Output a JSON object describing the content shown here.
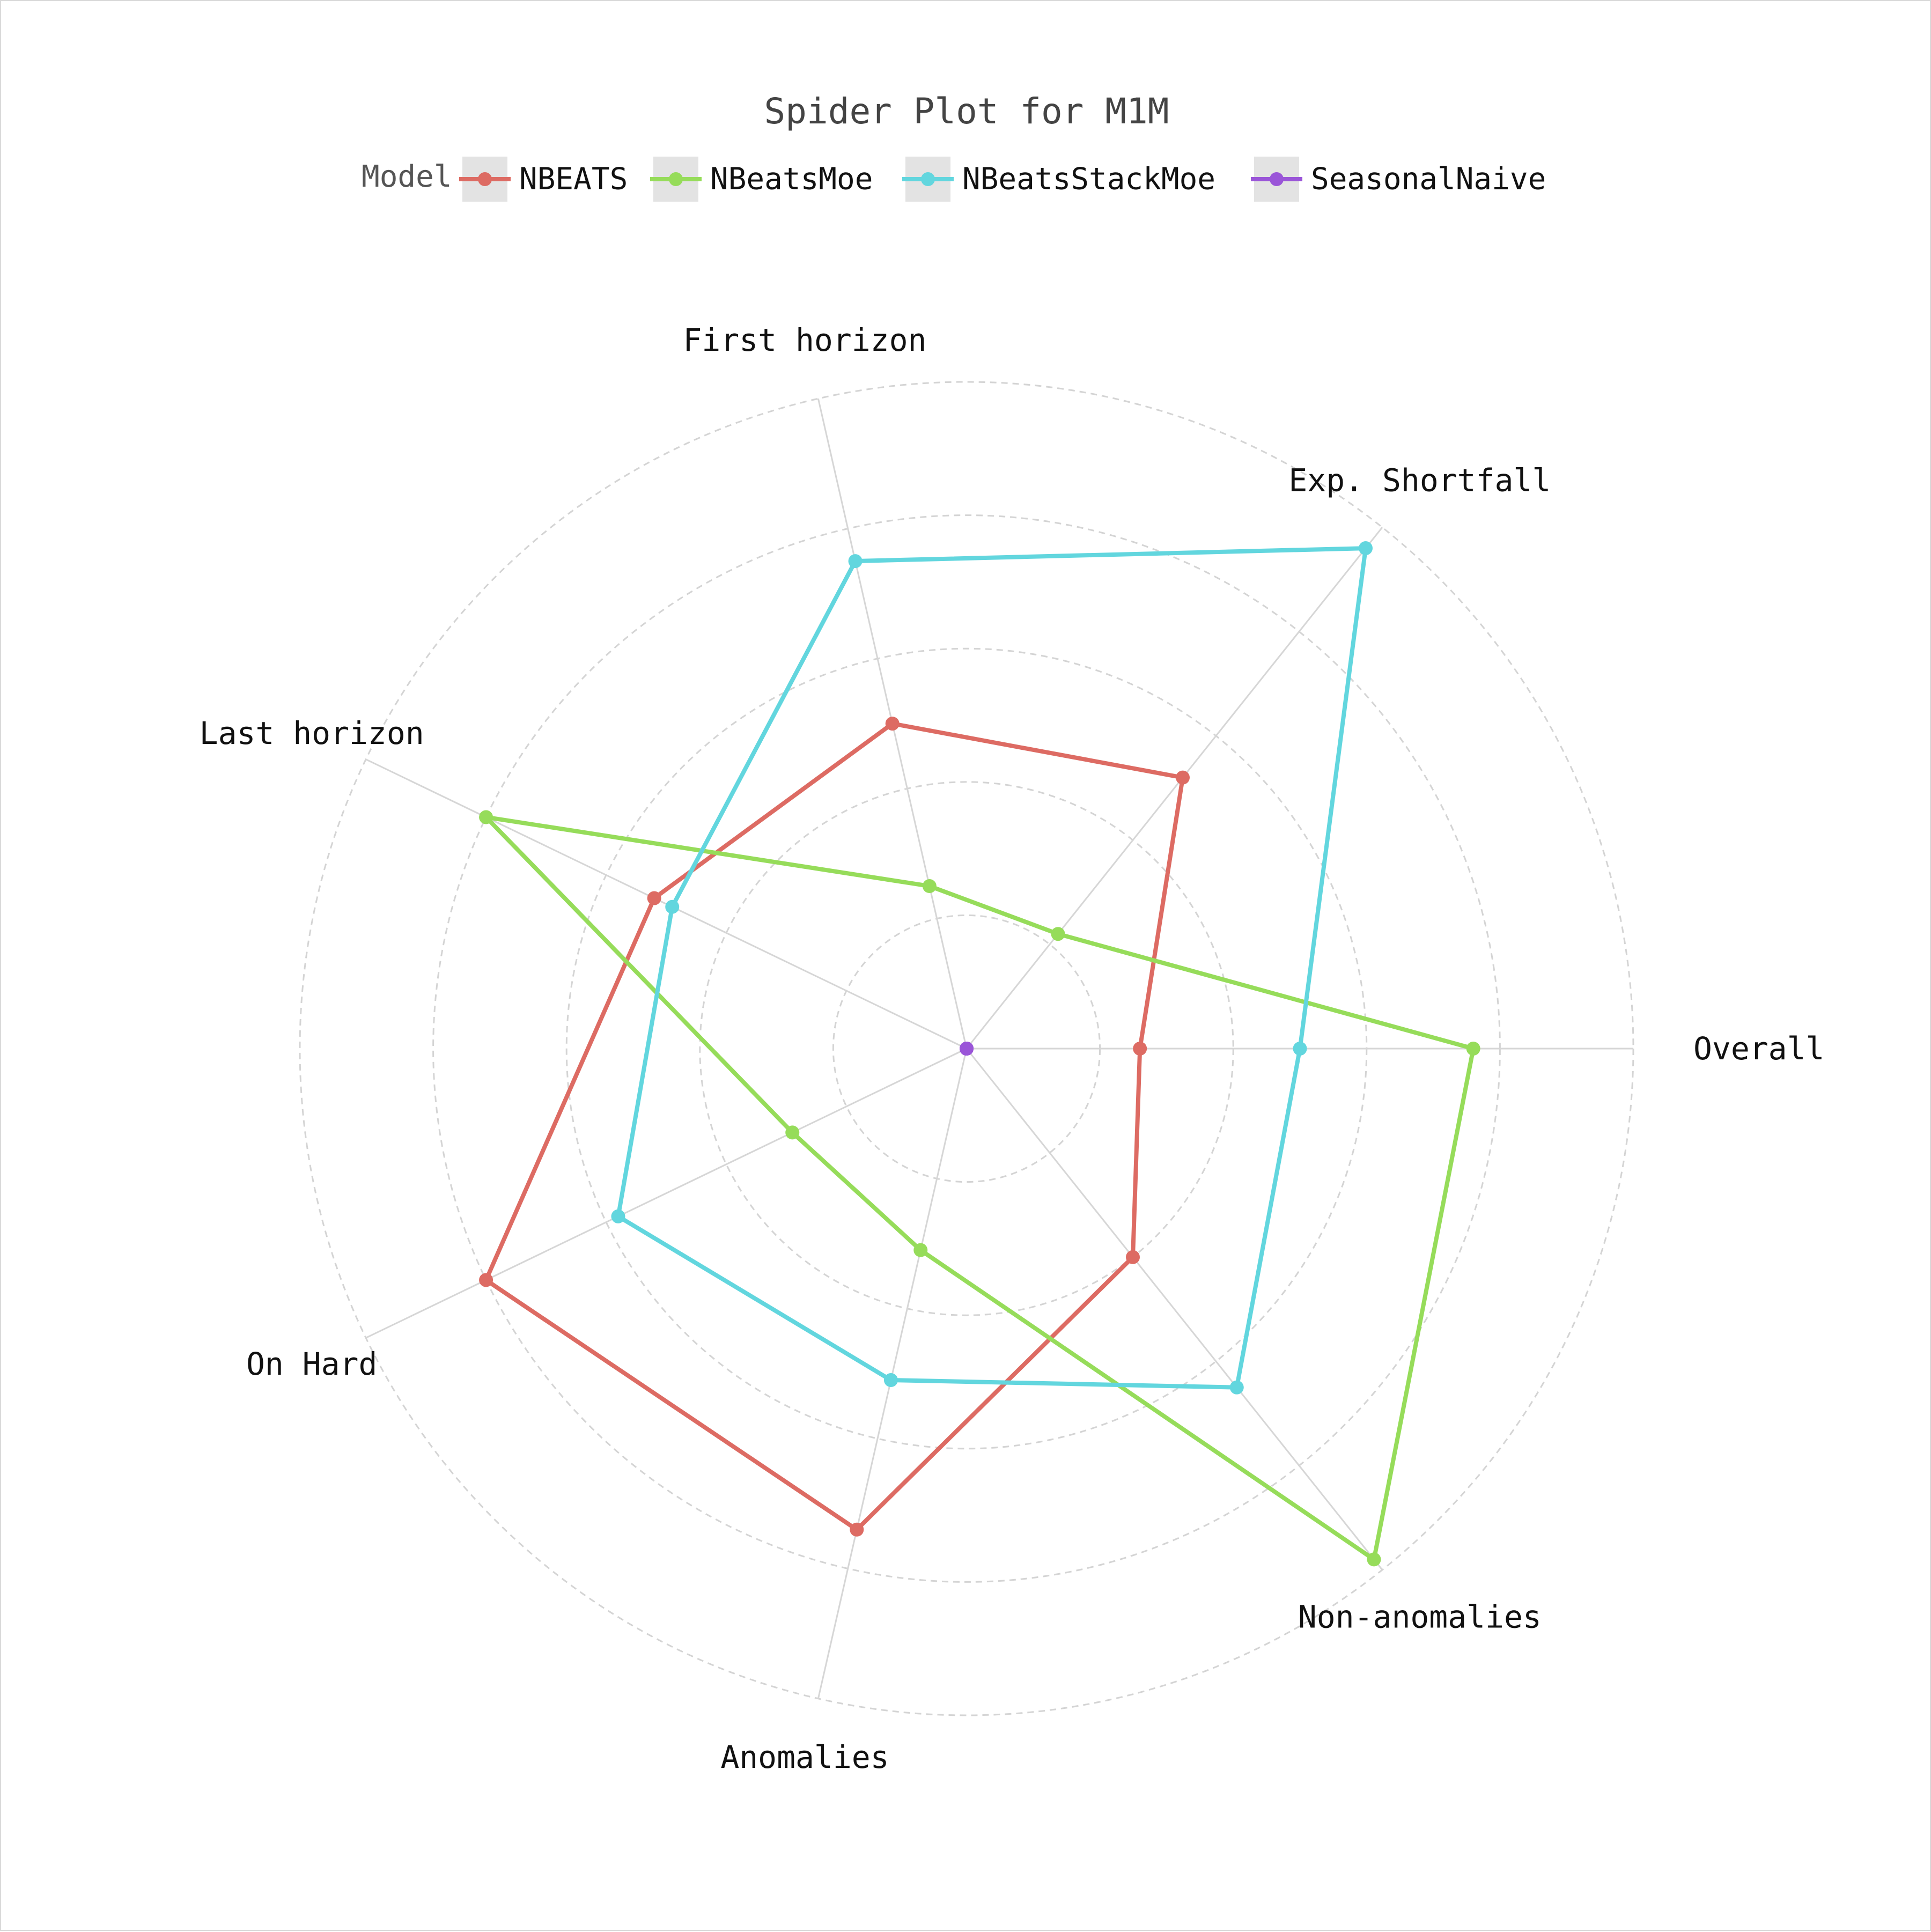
{
  "chart_data": {
    "type": "radar",
    "title": "Spider Plot for M1M",
    "legend": {
      "title": "Model",
      "placement": "top",
      "entries": [
        "NBEATS",
        "NBeatsMoe",
        "NBeatsStackMoe",
        "SeasonalNaive"
      ]
    },
    "axes": [
      "Overall",
      "Exp. Shortfall",
      "First horizon",
      "Last horizon",
      "On Hard",
      "Anomalies",
      "Non-anomalies"
    ],
    "radial_range": [
      0,
      1
    ],
    "grid_rings": 5,
    "grid": "dashed",
    "series": [
      {
        "name": "NBEATS",
        "color": "#dd6b63",
        "values": [
          0.26,
          0.52,
          0.5,
          0.52,
          0.8,
          0.74,
          0.4
        ]
      },
      {
        "name": "NBeatsMoe",
        "color": "#96dc5a",
        "values": [
          0.76,
          0.22,
          0.25,
          0.8,
          0.29,
          0.31,
          0.98
        ]
      },
      {
        "name": "NBeatsStackMoe",
        "color": "#62d6de",
        "values": [
          0.5,
          0.96,
          0.75,
          0.49,
          0.58,
          0.51,
          0.65
        ]
      },
      {
        "name": "SeasonalNaive",
        "color": "#9a55d8",
        "values": [
          0,
          0,
          0,
          0,
          0,
          0,
          0
        ]
      }
    ]
  }
}
